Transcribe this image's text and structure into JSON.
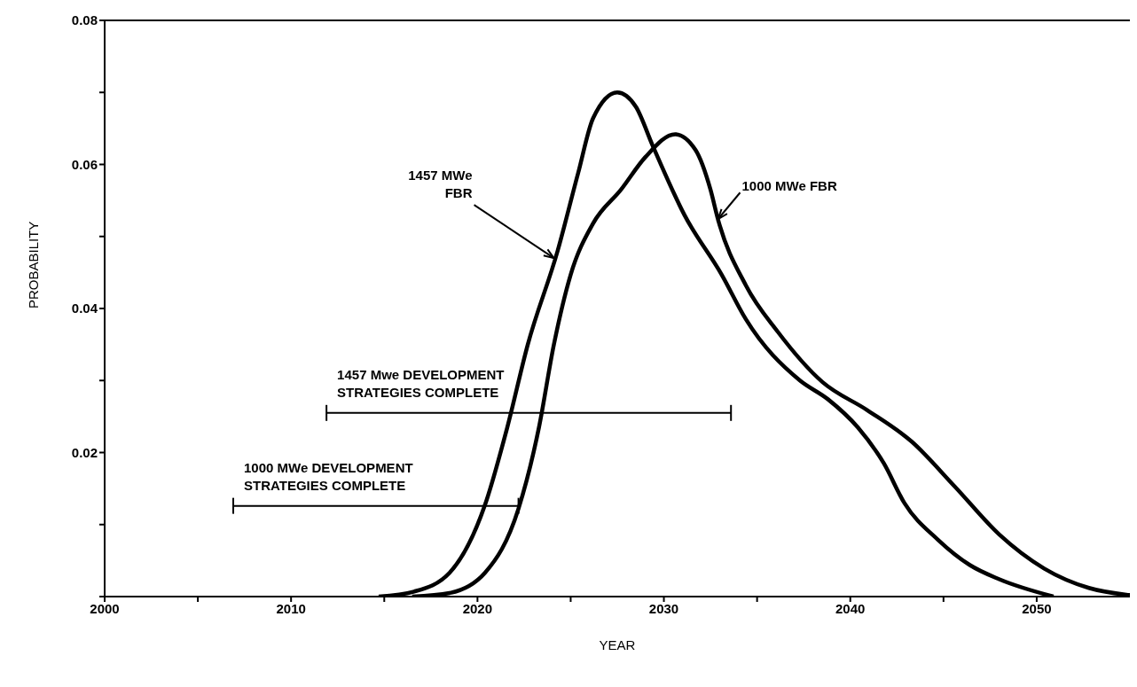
{
  "chart_data": {
    "type": "line",
    "xlabel": "YEAR",
    "ylabel": "PROBABILITY",
    "xlim": [
      2000,
      2055
    ],
    "ylim": [
      0,
      0.08
    ],
    "xticks": [
      2000,
      {
        "value": 2005,
        "label": null
      },
      2010,
      {
        "value": 2015,
        "label": null
      },
      2020,
      {
        "value": 2025,
        "label": null
      },
      2030,
      {
        "value": 2035,
        "label": null
      },
      2040,
      {
        "value": 2045,
        "label": null
      },
      2050
    ],
    "yticks": [
      {
        "value": 0,
        "label": null
      },
      {
        "value": 0.01,
        "label": null
      },
      0.02,
      {
        "value": 0.03,
        "label": null
      },
      0.04,
      {
        "value": 0.05,
        "label": null
      },
      0.06,
      {
        "value": 0.07,
        "label": null
      },
      0.08
    ],
    "grid": false,
    "line_style": "solid",
    "series": [
      {
        "color": "#000000",
        "x": [
          2014.7,
          2016.6,
          2018.5,
          2020.4,
          2021.6,
          2022.7,
          2024.3,
          2025.4,
          2026.2,
          2027.5,
          2028.5,
          2029.4,
          2031.1,
          2033.1,
          2034.4,
          2037.3,
          2038.8,
          2040.4,
          2041.8,
          2042.9,
          2044.7,
          2046.4,
          2048.0,
          2050.9
        ],
        "values": [
          0,
          0.0007,
          0.0033,
          0.0127,
          0.0235,
          0.035,
          0.048,
          0.0588,
          0.0664,
          0.07,
          0.068,
          0.0626,
          0.053,
          0.0447,
          0.0385,
          0.03,
          0.0274,
          0.0235,
          0.0185,
          0.013,
          0.0079,
          0.0044,
          0.0024,
          0
        ]
      },
      {
        "color": "#000000",
        "x": [
          2016.5,
          2018.5,
          2020.4,
          2022.2,
          2023.3,
          2024.1,
          2025.0,
          2026.2,
          2027.7,
          2029.0,
          2030.6,
          2031.7,
          2032.5,
          2032.9,
          2034.4,
          2036.1,
          2038.5,
          2040.9,
          2043.3,
          2045.6,
          2048.0,
          2050.4,
          2052.8,
          2055.0
        ],
        "values": [
          0,
          0.0005,
          0.0033,
          0.0122,
          0.0235,
          0.035,
          0.0447,
          0.0518,
          0.0565,
          0.061,
          0.0642,
          0.062,
          0.0565,
          0.0524,
          0.0432,
          0.0368,
          0.0298,
          0.0259,
          0.0215,
          0.0153,
          0.0086,
          0.0039,
          0.0012,
          0.0002
        ]
      },
      {
        "name": "1457 Mwe DEVELOPMENT\nSTRATEGIES COMPLETE",
        "color": "#000000",
        "x": [
          2011.9,
          2033.6
        ],
        "values": [
          0.0255,
          0.0255
        ]
      },
      {
        "name": "1000 MWe DEVELOPMENT\nSTRATEGIES COMPLETE",
        "color": "#000000",
        "x": [
          2006.9,
          2022.2
        ],
        "values": [
          0.0126,
          0.0126
        ]
      }
    ],
    "annotations": [
      {
        "text": "1457 MWe\nFBR",
        "x": 2024.1,
        "y": 0.047
      },
      {
        "text": "1000 MWe FBR",
        "x": 2032.9,
        "y": 0.0524
      }
    ]
  }
}
